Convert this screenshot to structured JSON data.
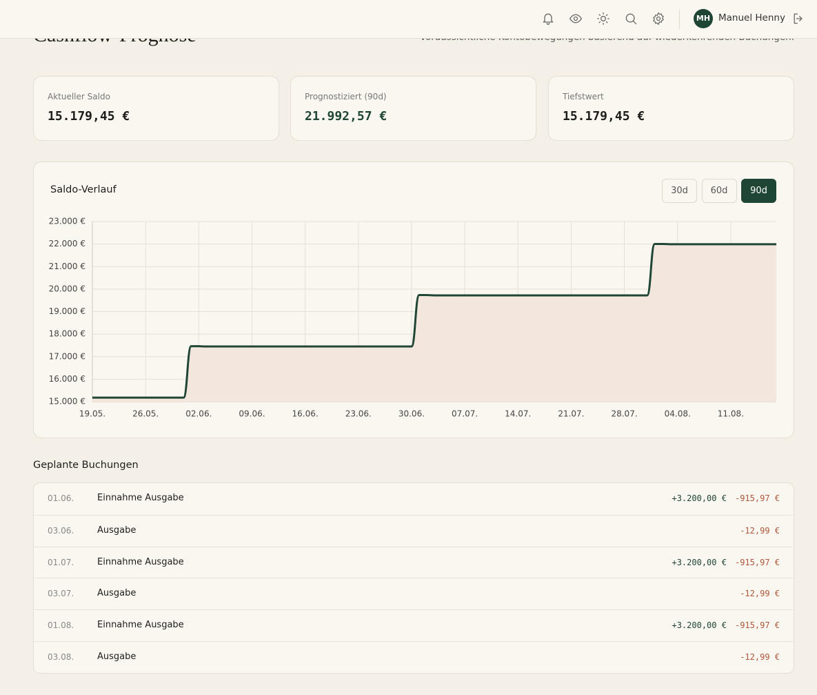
{
  "header": {
    "avatar": "MH",
    "user_name": "Manuel Henny"
  },
  "page": {
    "title": "Cashflow-Prognose",
    "subtitle": "Voraussichtliche Kontobewegungen basierend auf wiederkehrenden Buchungen."
  },
  "summary": [
    {
      "label": "Aktueller Saldo",
      "value": "15.179,45 €"
    },
    {
      "label": "Prognostiziert (90d)",
      "value": "21.992,57 €"
    },
    {
      "label": "Tiefstwert",
      "value": "15.179,45 €"
    }
  ],
  "chart_panel": {
    "title": "Saldo-Verlauf",
    "range_buttons": [
      "30d",
      "60d",
      "90d"
    ],
    "active_range": "90d"
  },
  "chart_data": {
    "type": "area",
    "x": [
      "19.05.",
      "31.05.",
      "01.06.",
      "02.06.",
      "03.06.",
      "30.06.",
      "01.07.",
      "02.07.",
      "03.07.",
      "31.07.",
      "01.08.",
      "02.08.",
      "03.08.",
      "17.08."
    ],
    "series": [
      {
        "color": "#1f4535",
        "fill": "#f3e6dd",
        "values": [
          15179.45,
          15179.45,
          17463.48,
          17463.48,
          17450.49,
          17450.49,
          19734.52,
          19734.52,
          19721.53,
          19721.53,
          22005.56,
          22005.56,
          21992.57,
          21992.57
        ]
      }
    ],
    "xlim": [
      "19.05.",
      "17.08."
    ],
    "xticks": [
      "19.05.",
      "26.05.",
      "02.06.",
      "09.06.",
      "16.06.",
      "23.06.",
      "30.06.",
      "07.07.",
      "14.07.",
      "21.07.",
      "28.07.",
      "04.08.",
      "11.08."
    ],
    "ylim": [
      15000,
      23000
    ],
    "yticks": [
      {
        "value": 15000,
        "label": "15.000 €"
      },
      {
        "value": 16000,
        "label": "16.000 €"
      },
      {
        "value": 17000,
        "label": "17.000 €"
      },
      {
        "value": 18000,
        "label": "18.000 €"
      },
      {
        "value": 19000,
        "label": "19.000 €"
      },
      {
        "value": 20000,
        "label": "20.000 €"
      },
      {
        "value": 21000,
        "label": "21.000 €"
      },
      {
        "value": 22000,
        "label": "22.000 €"
      },
      {
        "value": 23000,
        "label": "23.000 €"
      }
    ],
    "grid": true
  },
  "bookings": {
    "title": "Geplante Buchungen",
    "rows": [
      {
        "date": "01.06.",
        "description": "Einnahme Ausgabe",
        "income": "+3.200,00 €",
        "expense": "-915,97 €"
      },
      {
        "date": "03.06.",
        "description": "Ausgabe",
        "expense": "-12,99 €"
      },
      {
        "date": "01.07.",
        "description": "Einnahme Ausgabe",
        "income": "+3.200,00 €",
        "expense": "-915,97 €"
      },
      {
        "date": "03.07.",
        "description": "Ausgabe",
        "expense": "-12,99 €"
      },
      {
        "date": "01.08.",
        "description": "Einnahme Ausgabe",
        "income": "+3.200,00 €",
        "expense": "-915,97 €"
      },
      {
        "date": "03.08.",
        "description": "Ausgabe",
        "expense": "-12,99 €"
      }
    ]
  }
}
